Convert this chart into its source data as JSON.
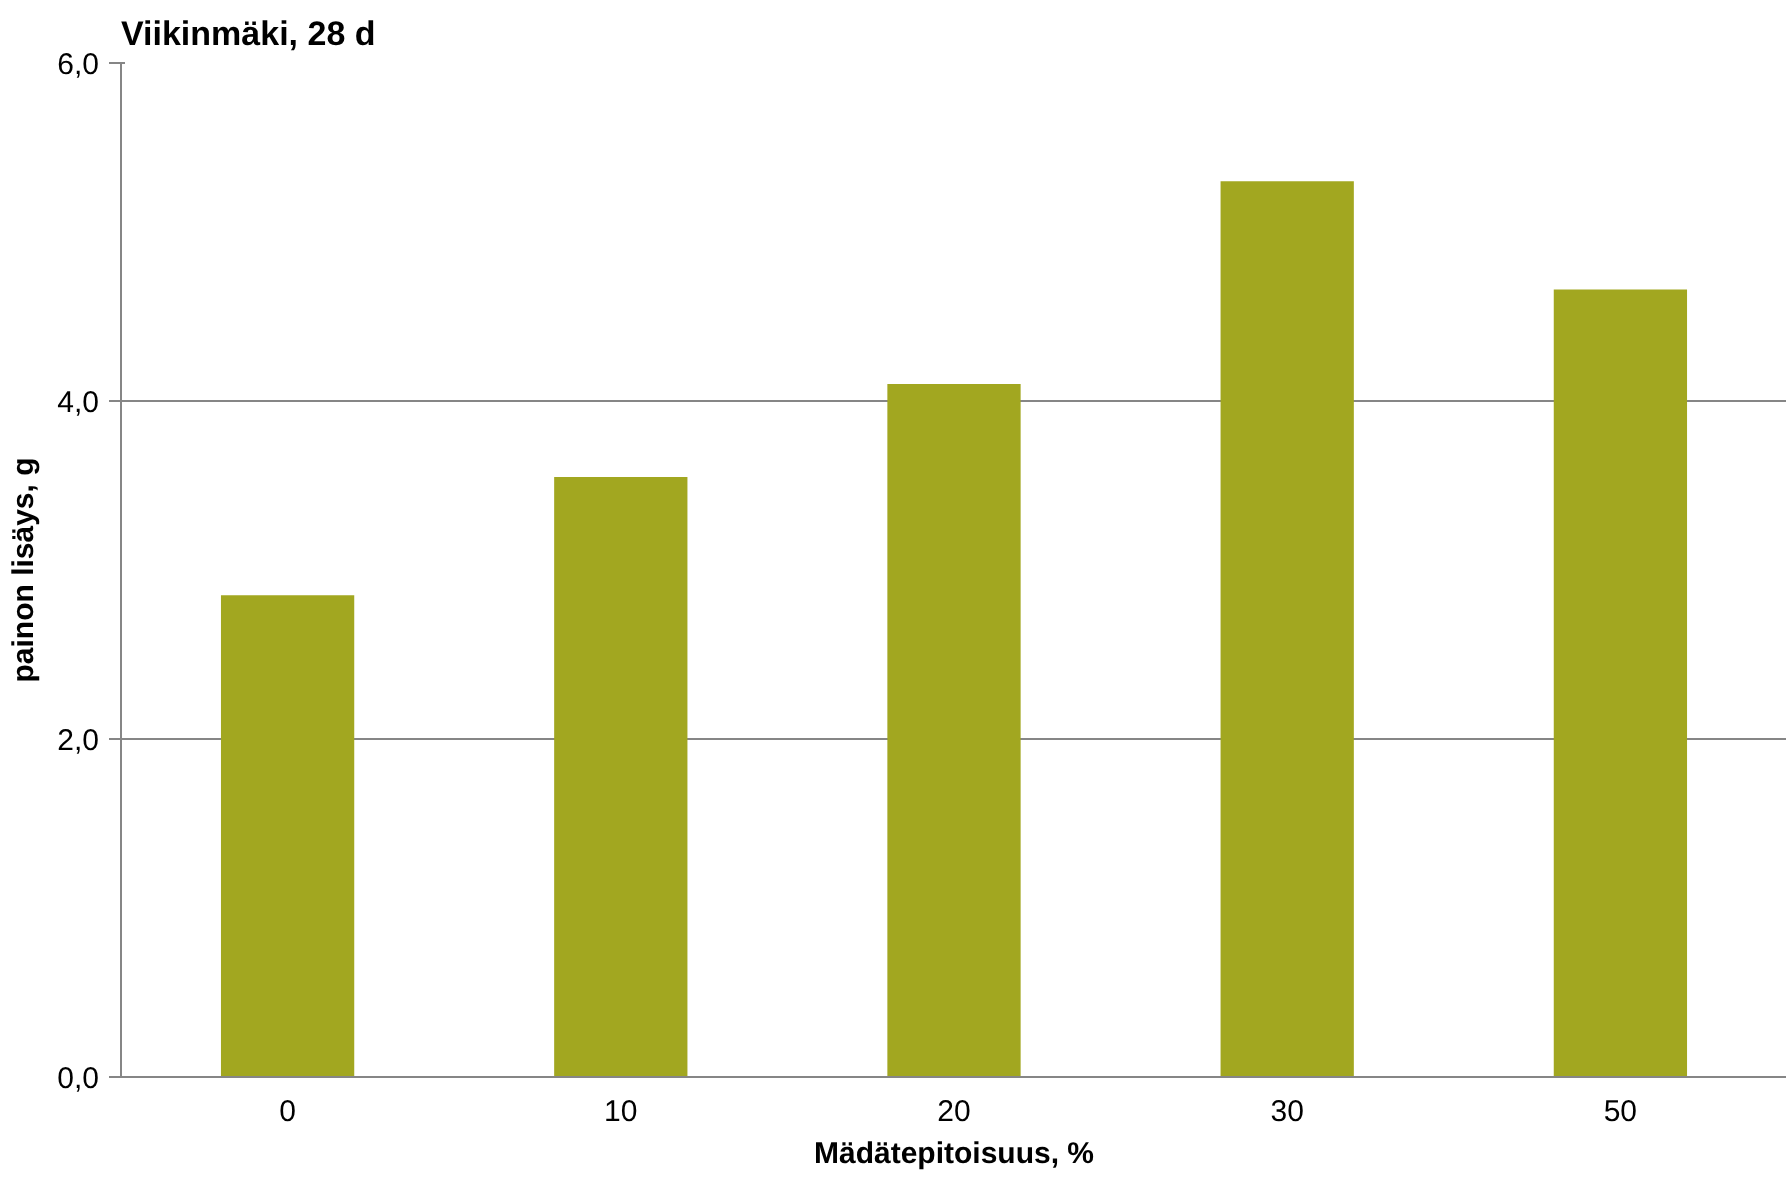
{
  "chart_data": {
    "type": "bar",
    "title": "Viikinmäki, 28 d",
    "xlabel": "Mädätepitoisuus, %",
    "ylabel": "painon lisäys, g",
    "categories": [
      "0",
      "10",
      "20",
      "30",
      "50"
    ],
    "values": [
      2.85,
      3.55,
      4.1,
      5.3,
      4.66
    ],
    "color": "#a2a720",
    "ylim": [
      0,
      6
    ],
    "yticks": [
      {
        "value": 0,
        "label": "0,0"
      },
      {
        "value": 2,
        "label": "2,0"
      },
      {
        "value": 4,
        "label": "4,0"
      },
      {
        "value": 6,
        "label": "6,0"
      }
    ],
    "grid": "y"
  }
}
